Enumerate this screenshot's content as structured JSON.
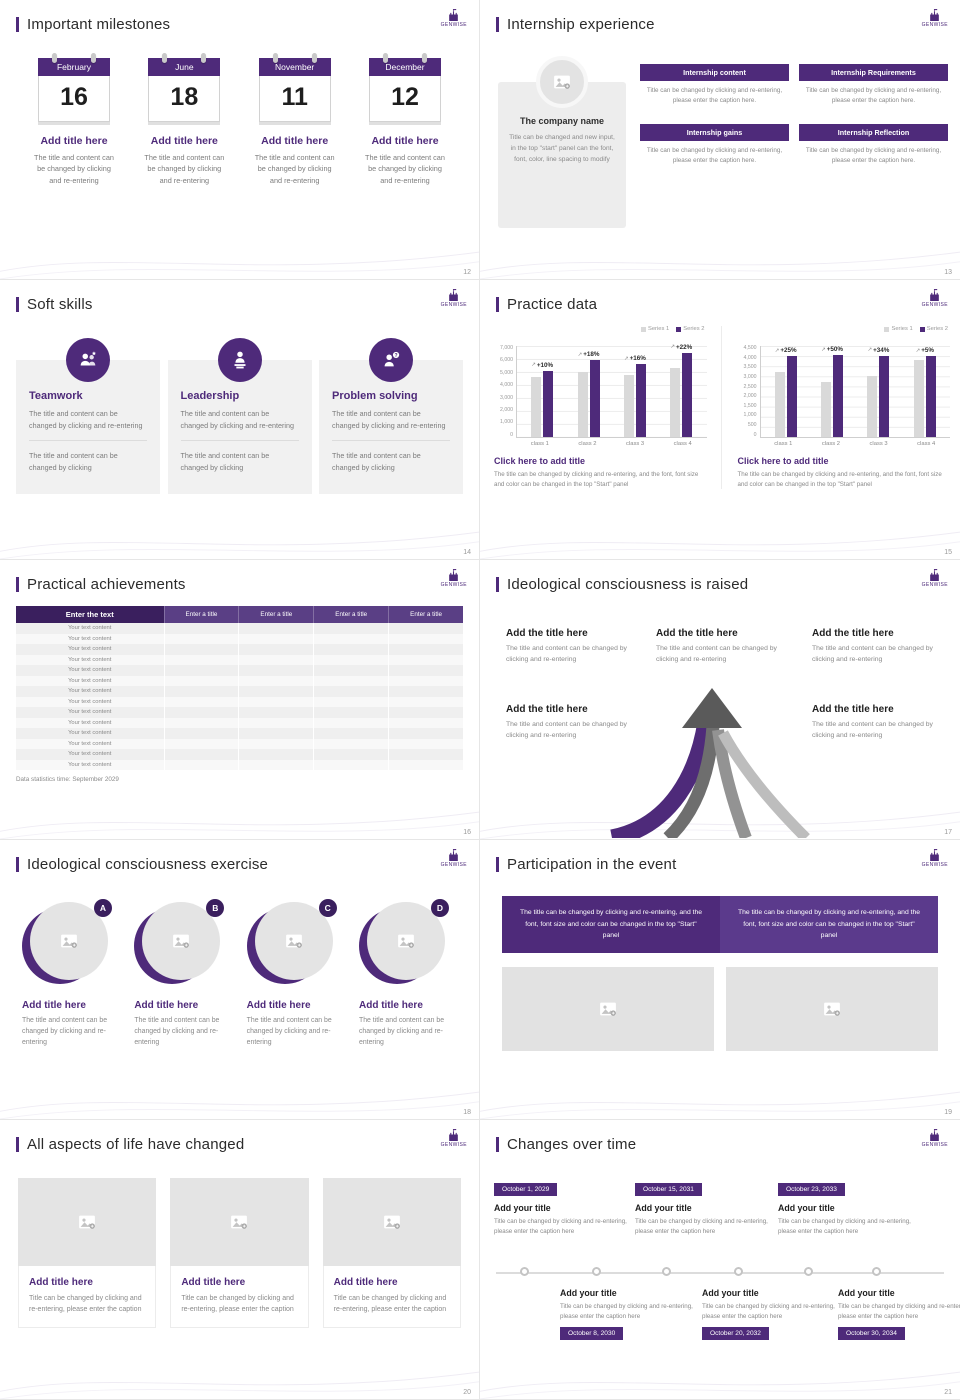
{
  "logo": {
    "text": "GENWISE"
  },
  "theme": {
    "purple": "#4e2a7a",
    "purple_dark": "#3a1f5e",
    "gray_bar": "#d9d9d9"
  },
  "slides": [
    {
      "title": "Important milestones",
      "page": "12",
      "item_title": "Add title here",
      "item_caption": "The title and content can be changed by clicking and re-entering",
      "calendars": [
        {
          "month": "February",
          "day": "16"
        },
        {
          "month": "June",
          "day": "18"
        },
        {
          "month": "November",
          "day": "11"
        },
        {
          "month": "December",
          "day": "12"
        }
      ]
    },
    {
      "title": "Internship experience",
      "page": "13",
      "company_name": "The company name",
      "company_caption": "Title can be changed and new input, in the top \"start\" panel can the font, font, color, line spacing to modify",
      "block_caption": "Title can be changed by clicking and re-entering, please enter the caption here.",
      "blocks": [
        {
          "label": "Internship content"
        },
        {
          "label": "Internship Requirements"
        },
        {
          "label": "Internship gains"
        },
        {
          "label": "Internship Reflection"
        }
      ]
    },
    {
      "title": "Soft skills",
      "page": "14",
      "caption_top": "The title and content can be changed by clicking and re-entering",
      "caption_bottom": "The title and content can be changed by clicking",
      "cards": [
        {
          "name": "Teamwork"
        },
        {
          "name": "Leadership"
        },
        {
          "name": "Problem solving"
        }
      ]
    },
    {
      "title": "Practice data",
      "page": "15",
      "link_title": "Click here to add title",
      "caption": "The title can be changed by clicking and re-entering, and the font, font size and color can be changed in the top \"Start\" panel"
    },
    {
      "title": "Practical achievements",
      "page": "16",
      "table": {
        "first_header": "Enter the text",
        "col_header": "Enter a title",
        "row_label": "Your text content",
        "row_count": 14
      },
      "footnote": "Data statistics time: September 2029"
    },
    {
      "title": "Ideological consciousness is raised",
      "page": "17",
      "item_title": "Add the title here",
      "item_caption": "The title and content can be changed by clicking and re-entering"
    },
    {
      "title": "Ideological consciousness exercise",
      "page": "18",
      "item_title": "Add title here",
      "item_caption": "The title and content can be changed by clicking and re-entering",
      "letters": [
        "A",
        "B",
        "C",
        "D"
      ]
    },
    {
      "title": "Participation in the event",
      "page": "19",
      "banner_caption": "The title can be changed by clicking and re-entering, and the font, font size and color can be changed in the top \"Start\" panel"
    },
    {
      "title": "All aspects of life have changed",
      "page": "20",
      "item_title": "Add title here",
      "item_caption": "Title can be changed by clicking and re-entering, please enter the caption"
    },
    {
      "title": "Changes over time",
      "page": "21",
      "item_title": "Add your title",
      "item_caption": "Title can be changed by clicking and re-entering, please enter the caption here",
      "dates_top": [
        "October 1, 2029",
        "October 15, 2031",
        "October 23, 2033"
      ],
      "dates_bottom": [
        "October 8, 2030",
        "October 20, 2032",
        "October 30, 2034"
      ]
    }
  ],
  "chart_data": [
    {
      "type": "bar",
      "title": "Practice data — left chart",
      "categories": [
        "class 1",
        "class 2",
        "class 3",
        "class 4"
      ],
      "series": [
        {
          "name": "Series 1",
          "values": [
            4600,
            5000,
            4800,
            5300
          ]
        },
        {
          "name": "Series 2",
          "values": [
            5100,
            5900,
            5600,
            6500
          ]
        }
      ],
      "bar_labels": [
        "+10%",
        "+18%",
        "+16%",
        "+22%"
      ],
      "ylim": [
        0,
        7000
      ],
      "yticks": [
        "7,000",
        "6,000",
        "5,000",
        "4,000",
        "3,000",
        "2,000",
        "1,000",
        "0"
      ],
      "grid": true,
      "legend_position": "top-right"
    },
    {
      "type": "bar",
      "title": "Practice data — right chart",
      "categories": [
        "class 1",
        "class 2",
        "class 3",
        "class 4"
      ],
      "series": [
        {
          "name": "Series 1",
          "values": [
            3200,
            2700,
            3000,
            3800
          ]
        },
        {
          "name": "Series 2",
          "values": [
            4000,
            4050,
            4020,
            3990
          ]
        }
      ],
      "bar_labels": [
        "+25%",
        "+50%",
        "+34%",
        "+5%"
      ],
      "ylim": [
        0,
        4500
      ],
      "yticks": [
        "4,500",
        "4,000",
        "3,500",
        "3,000",
        "2,500",
        "2,000",
        "1,500",
        "1,000",
        "500",
        "0"
      ],
      "grid": true,
      "legend_position": "top-right"
    }
  ]
}
